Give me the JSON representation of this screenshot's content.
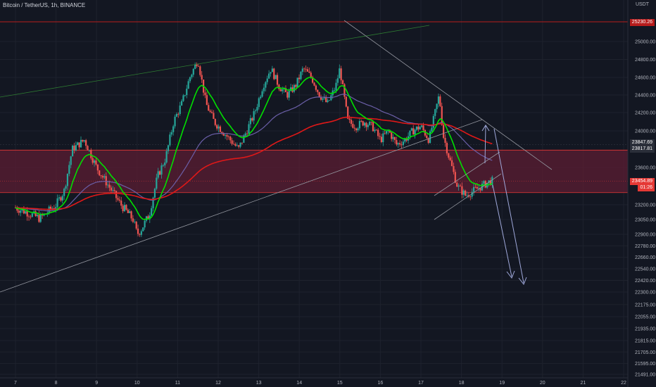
{
  "header": {
    "title": "Bitcoin / TetherUS, 1h, BINANCE",
    "unit": "USDT"
  },
  "price_tags": {
    "top": "25230.26",
    "level1": "23847.69",
    "level2": "23817.81",
    "current": "23454.89",
    "countdown": "01:26"
  },
  "colors": {
    "bg": "#131722",
    "up": "#26a69a",
    "down": "#ef5350",
    "zone": "#5c1e33",
    "ema_fast": "#00e000",
    "ema_mid": "#6b5fa8",
    "ema_slow": "#e01818",
    "tag_red": "#b71c1c",
    "tag_dark": "#2a2e39"
  },
  "chart_data": {
    "type": "candlestick",
    "y_ticks": [
      25000,
      24800,
      24600,
      24400,
      24200,
      24000,
      23600,
      23200,
      23050,
      22900,
      22780,
      22660,
      22540,
      22420,
      22300,
      22175,
      22055,
      21935,
      21815,
      21705,
      21595,
      21491
    ],
    "x_ticks": [
      "7",
      "8",
      "9",
      "10",
      "11",
      "12",
      "13",
      "14",
      "15",
      "16",
      "17",
      "18",
      "19",
      "20",
      "21",
      "22"
    ],
    "ylim": [
      21450,
      25450
    ],
    "close_path": [
      [
        0,
        23170
      ],
      [
        0.3,
        23120
      ],
      [
        0.6,
        23060
      ],
      [
        0.8,
        23130
      ],
      [
        1,
        23200
      ],
      [
        1.2,
        23350
      ],
      [
        1.4,
        23800
      ],
      [
        1.7,
        23900
      ],
      [
        2,
        23600
      ],
      [
        2.3,
        23400
      ],
      [
        2.6,
        23200
      ],
      [
        2.9,
        23050
      ],
      [
        3,
        22900
      ],
      [
        3.1,
        22950
      ],
      [
        3.3,
        23100
      ],
      [
        3.5,
        23500
      ],
      [
        3.7,
        23700
      ],
      [
        3.9,
        24100
      ],
      [
        4.1,
        24300
      ],
      [
        4.3,
        24600
      ],
      [
        4.5,
        24800
      ],
      [
        4.7,
        24300
      ],
      [
        4.9,
        24100
      ],
      [
        5.1,
        24000
      ],
      [
        5.3,
        23900
      ],
      [
        5.5,
        23800
      ],
      [
        5.7,
        24000
      ],
      [
        5.9,
        24200
      ],
      [
        6.1,
        24500
      ],
      [
        6.3,
        24700
      ],
      [
        6.5,
        24500
      ],
      [
        6.7,
        24400
      ],
      [
        6.9,
        24500
      ],
      [
        7.1,
        24700
      ],
      [
        7.3,
        24600
      ],
      [
        7.5,
        24400
      ],
      [
        7.7,
        24300
      ],
      [
        7.9,
        24500
      ],
      [
        8,
        24700
      ],
      [
        8.2,
        24100
      ],
      [
        8.4,
        24050
      ],
      [
        8.6,
        24100
      ],
      [
        8.8,
        24050
      ],
      [
        9,
        23900
      ],
      [
        9.2,
        24000
      ],
      [
        9.4,
        23850
      ],
      [
        9.6,
        23900
      ],
      [
        9.8,
        24000
      ],
      [
        10,
        24050
      ],
      [
        10.2,
        23900
      ],
      [
        10.3,
        24100
      ],
      [
        10.45,
        24400
      ],
      [
        10.55,
        23950
      ],
      [
        10.7,
        23700
      ],
      [
        10.9,
        23400
      ],
      [
        11.1,
        23300
      ],
      [
        11.3,
        23350
      ],
      [
        11.5,
        23400
      ],
      [
        11.7,
        23450
      ],
      [
        11.8,
        23460
      ]
    ]
  }
}
